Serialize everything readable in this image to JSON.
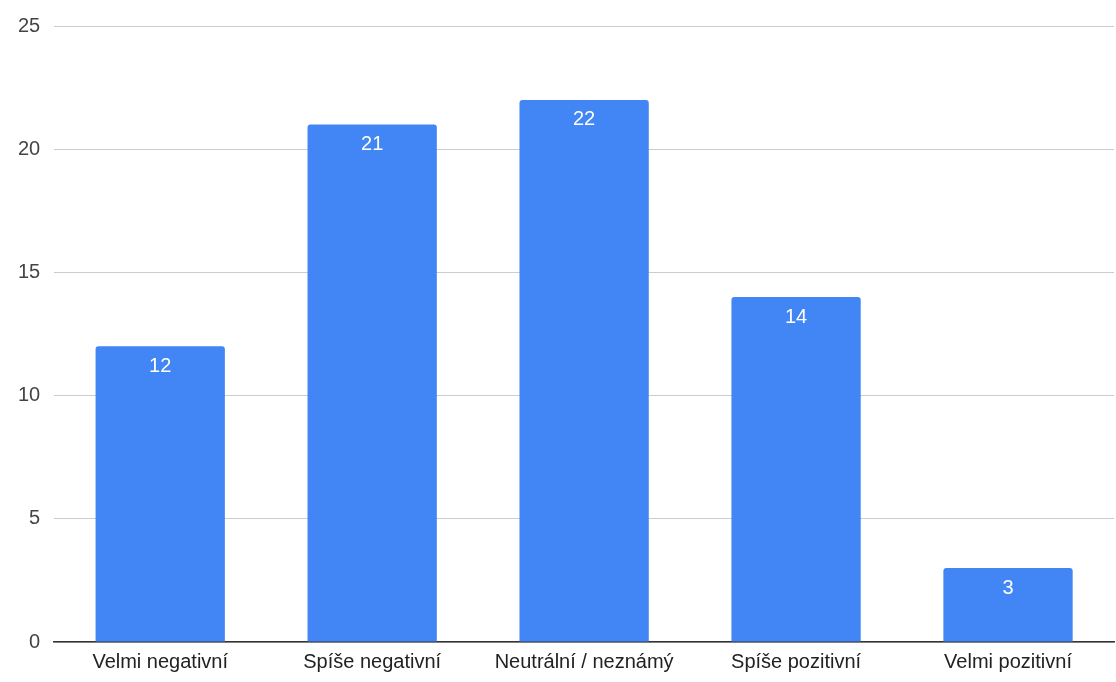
{
  "chart_data": {
    "type": "bar",
    "categories": [
      "Velmi negativní",
      "Spíše negativní",
      "Neutrální / neznámý",
      "Spíše pozitivní",
      "Velmi pozitivní"
    ],
    "values": [
      12,
      21,
      22,
      14,
      3
    ],
    "color": "#4285f4",
    "ylim": [
      0,
      25
    ],
    "yticks": [
      0,
      5,
      10,
      15,
      20,
      25
    ],
    "grid": "y",
    "data_labels": true,
    "legend": false
  }
}
